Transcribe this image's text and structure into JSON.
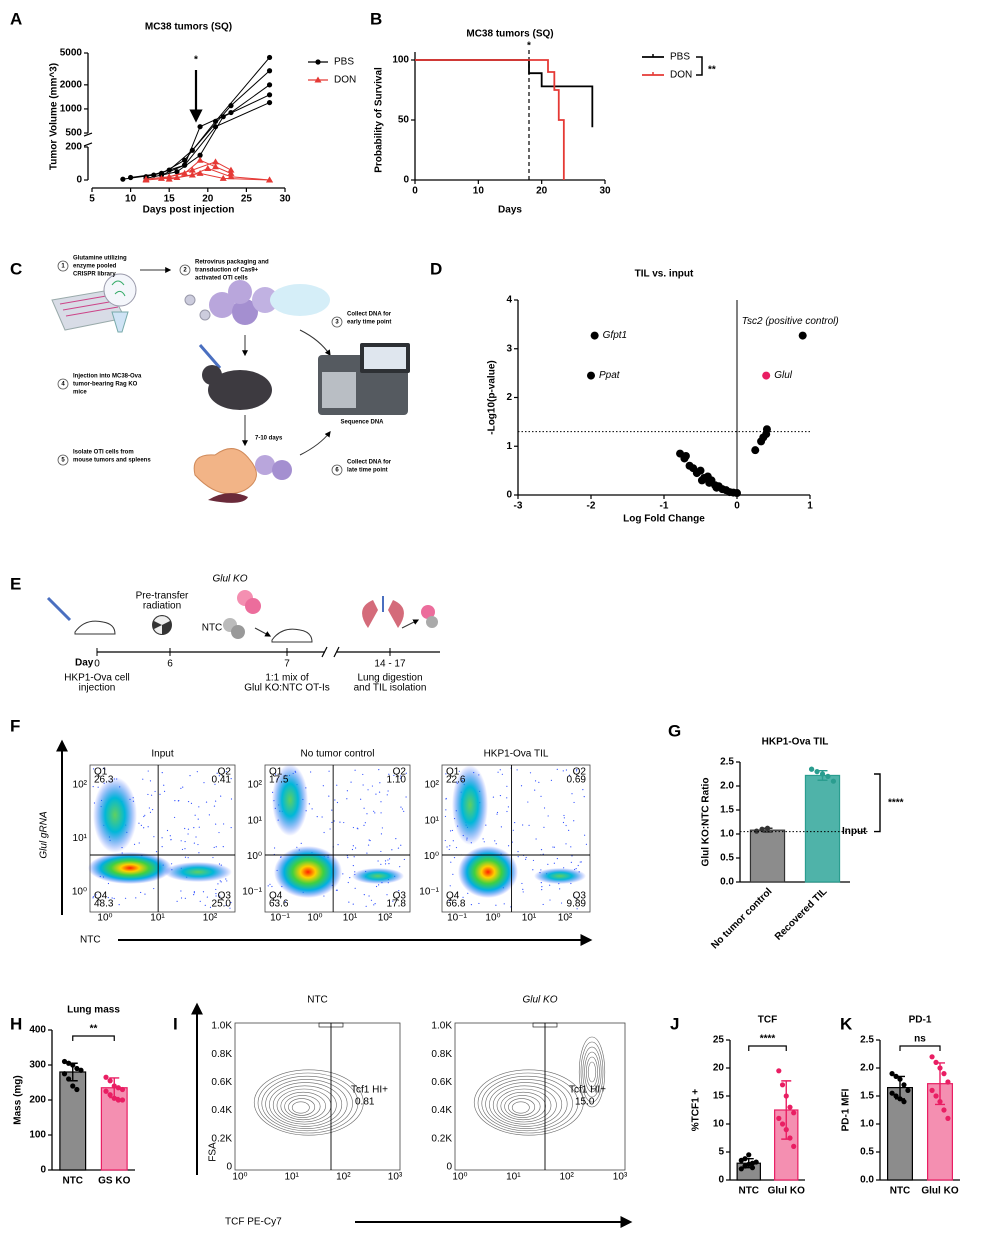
{
  "chart_data": [
    {
      "panel": "A",
      "type": "line",
      "title": "MC38 tumors (SQ)",
      "x_label": "Days post injection",
      "y_label": "Tumor Volume (mm^3)",
      "xlim": [
        5,
        30
      ],
      "xticks": [
        5,
        10,
        15,
        20,
        25,
        30
      ],
      "ylim": [
        0,
        5000
      ],
      "yticks": [
        0,
        200,
        500,
        1000,
        2000,
        5000
      ],
      "ybreak": [
        200,
        500
      ],
      "upper_scale": "log",
      "annotation": "*",
      "groups": [
        {
          "name": "PBS",
          "color": "#000000",
          "marker": "circle",
          "mice": [
            {
              "x": [
                10,
                14,
                17,
                21,
                28
              ],
              "values": [
                15,
                40,
                120,
                700,
                4400
              ]
            },
            {
              "x": [
                12,
                15,
                18,
                23,
                28
              ],
              "values": [
                20,
                60,
                180,
                1100,
                3000
              ]
            },
            {
              "x": [
                14,
                17,
                19,
                23,
                28
              ],
              "values": [
                30,
                90,
                600,
                900,
                2000
              ]
            },
            {
              "x": [
                12,
                16,
                19,
                22,
                28
              ],
              "values": [
                10,
                50,
                150,
                800,
                1500
              ]
            },
            {
              "x": [
                9,
                13,
                17,
                21,
                28
              ],
              "values": [
                5,
                30,
                90,
                600,
                1200
              ]
            }
          ]
        },
        {
          "name": "DON",
          "color": "#e53935",
          "marker": "triangle",
          "mice": [
            {
              "x": [
                12,
                15,
                18,
                21,
                23
              ],
              "values": [
                5,
                20,
                60,
                110,
                60
              ]
            },
            {
              "x": [
                14,
                17,
                19,
                21,
                23
              ],
              "values": [
                10,
                40,
                120,
                80,
                40
              ]
            },
            {
              "x": [
                15,
                18,
                20,
                23,
                28
              ],
              "values": [
                5,
                30,
                70,
                20,
                0
              ]
            },
            {
              "x": [
                12,
                16,
                19,
                22,
                28
              ],
              "values": [
                0,
                15,
                40,
                10,
                0
              ]
            }
          ]
        }
      ]
    },
    {
      "panel": "B",
      "type": "step",
      "title": "MC38 tumors (SQ)",
      "x_label": "Days",
      "y_label": "Probability of Survival",
      "xlim": [
        0,
        30
      ],
      "xticks": [
        0,
        10,
        20,
        30
      ],
      "ylim": [
        0,
        100
      ],
      "yticks": [
        0,
        50,
        100
      ],
      "vline_x": 18,
      "vline_label": "*",
      "significance": "**",
      "series": [
        {
          "name": "PBS",
          "color": "#000000",
          "x": [
            0,
            18,
            20,
            22,
            28
          ],
          "values": [
            100,
            89,
            78,
            78,
            44
          ]
        },
        {
          "name": "DON",
          "color": "#e53935",
          "x": [
            0,
            21,
            22,
            22.7,
            23.5
          ],
          "values": [
            100,
            90,
            75,
            50,
            0
          ]
        }
      ]
    },
    {
      "panel": "D",
      "type": "scatter",
      "title": "TIL vs. input",
      "x_label": "Log Fold Change",
      "y_label": "-Log10(p-value)",
      "xlim": [
        -3,
        1
      ],
      "xticks": [
        -3,
        -2,
        -1,
        0,
        1
      ],
      "ylim": [
        0,
        4
      ],
      "yticks": [
        0,
        1,
        2,
        3,
        4
      ],
      "threshold": 1.3,
      "color": "#000000",
      "x": [
        -0.78,
        -0.72,
        -0.7,
        -0.65,
        -0.6,
        -0.55,
        -0.5,
        -0.48,
        -0.45,
        -0.4,
        -0.38,
        -0.35,
        -0.3,
        -0.28,
        -0.25,
        -0.2,
        -0.15,
        -0.1,
        -0.05,
        0,
        0.25,
        0.33,
        0.36,
        0.4,
        0.41
      ],
      "values": [
        0.85,
        0.75,
        0.8,
        0.6,
        0.55,
        0.45,
        0.5,
        0.3,
        0.35,
        0.38,
        0.25,
        0.3,
        0.2,
        0.15,
        0.18,
        0.12,
        0.1,
        0.06,
        0.05,
        0.04,
        0.92,
        1.1,
        1.18,
        1.25,
        1.35
      ],
      "highlights": [
        {
          "name": "Gfpt1",
          "x": -1.95,
          "y": 3.27,
          "color": "#000000"
        },
        {
          "name": "Ppat",
          "x": -2.0,
          "y": 2.45,
          "color": "#000000"
        },
        {
          "name": "Tsc2 (positive control)",
          "x": 0.9,
          "y": 3.27,
          "color": "#000000"
        },
        {
          "name": "Glul",
          "x": 0.4,
          "y": 2.45,
          "color": "#e91e63"
        }
      ]
    },
    {
      "panel": "G",
      "type": "bar",
      "title": "HKP1-Ova TIL",
      "y_label": "Glul KO:NTC Ratio",
      "rotate_labels": true,
      "categories": [
        "No tumor control",
        "Recovered TIL"
      ],
      "values": [
        1.08,
        2.22
      ],
      "errors": [
        0.04,
        0.1
      ],
      "colors": [
        "#8c8c8c",
        "#4fb3a9"
      ],
      "point_colors": [
        "#333333",
        "#2a9d8f"
      ],
      "points": [
        [
          1.06,
          1.1,
          1.12
        ],
        [
          2.35,
          2.3,
          2.25,
          2.2,
          2.1,
          2.35
        ]
      ],
      "ylim": [
        0,
        2.5
      ],
      "yticks": [
        {
          "value": 0,
          "label": "0.0"
        },
        0.5,
        {
          "value": 1,
          "label": "1.0"
        },
        1.5,
        {
          "value": 2,
          "label": "2.0"
        },
        2.5
      ],
      "reference": 1.05,
      "reference_label": "Input",
      "significance": "****"
    },
    {
      "panel": "H",
      "type": "bar",
      "title": "Lung mass",
      "y_label": "Mass (mg)",
      "categories": [
        "NTC",
        "GS KO"
      ],
      "values": [
        280,
        235
      ],
      "errors": [
        25,
        28
      ],
      "colors": [
        "#8c8c8c",
        "#f48fb1"
      ],
      "point_colors": [
        "#000000",
        "#e91e63"
      ],
      "points": [
        [
          310,
          305,
          300,
          290,
          285,
          275,
          260,
          240,
          230
        ],
        [
          265,
          255,
          240,
          235,
          230,
          225,
          215,
          205,
          200,
          200
        ]
      ],
      "ylim": [
        0,
        400
      ],
      "yticks": [
        0,
        100,
        200,
        300,
        400
      ],
      "significance": "**"
    },
    {
      "panel": "J",
      "type": "bar",
      "title": "TCF",
      "y_label": "%TCF1 +",
      "categories": [
        "NTC",
        "Glul KO"
      ],
      "values": [
        3,
        12.5
      ],
      "errors": [
        0.8,
        5.2
      ],
      "colors": [
        "#8c8c8c",
        "#f48fb1"
      ],
      "point_colors": [
        "#000000",
        "#e91e63"
      ],
      "points": [
        [
          2.0,
          2.5,
          2.8,
          3.0,
          3.2,
          3.5,
          3.8,
          4.5,
          2.2
        ],
        [
          19.5,
          17,
          15,
          13,
          12,
          11,
          10,
          9,
          7.5,
          6
        ]
      ],
      "ylim": [
        0,
        25
      ],
      "yticks": [
        0,
        5,
        10,
        15,
        20,
        25
      ],
      "significance": "****"
    },
    {
      "panel": "K",
      "type": "bar",
      "title": "PD-1",
      "y_label": "PD-1 MFI",
      "categories": [
        "NTC",
        "Glul KO"
      ],
      "values": [
        1.65,
        1.72
      ],
      "errors": [
        0.2,
        0.37
      ],
      "colors": [
        "#8c8c8c",
        "#f48fb1"
      ],
      "point_colors": [
        "#000000",
        "#e91e63"
      ],
      "points": [
        [
          1.9,
          1.85,
          1.8,
          1.7,
          1.6,
          1.55,
          1.5,
          1.45,
          1.4
        ],
        [
          2.2,
          2.1,
          2.0,
          1.9,
          1.75,
          1.6,
          1.5,
          1.4,
          1.25,
          1.1
        ]
      ],
      "ylim": [
        0,
        2.5
      ],
      "yticks": [
        {
          "value": 0,
          "label": "0.0"
        },
        0.5,
        {
          "value": 1,
          "label": "1.0"
        },
        1.5,
        {
          "value": 2,
          "label": "2.0"
        },
        2.5
      ],
      "significance": "ns"
    }
  ],
  "schematic_c": {
    "panel": "C",
    "time_label": "7-10 days",
    "device_label": "Sequence DNA",
    "steps": [
      {
        "number": "1",
        "lines": [
          "Glutamine utilizing",
          "enzyme pooled",
          "CRISPR library"
        ]
      },
      {
        "number": "2",
        "lines": [
          "Retrovirus packaging and",
          "transduction of Cas9+",
          "activated OTI cells"
        ]
      },
      {
        "number": "3",
        "lines": [
          "Collect DNA for",
          "early time point"
        ]
      },
      {
        "number": "4",
        "lines": [
          "Injection into MC38-Ova",
          "tumor-bearing Rag KO",
          "mice"
        ]
      },
      {
        "number": "5",
        "lines": [
          "Isolate OTI cells from",
          "mouse tumors and spleens"
        ]
      },
      {
        "number": "6",
        "lines": [
          "Collect DNA for",
          "late time point"
        ]
      }
    ]
  },
  "schematic_e": {
    "panel": "E",
    "day_label": "Day",
    "radiation": [
      "Pre-transfer",
      "radiation"
    ],
    "ko_label": "Glul KO",
    "ntc_label": "NTC",
    "days": [
      {
        "label": "0",
        "lines": [
          "HKP1-Ova cell",
          "injection"
        ]
      },
      {
        "label": "6"
      },
      {
        "label": "7",
        "lines": [
          "1:1 mix of",
          "Glul KO:NTC OT-Is"
        ]
      },
      {
        "label": "14 - 17",
        "lines": [
          "Lung digestion",
          "and TIL isolation"
        ]
      }
    ]
  },
  "flow_f": {
    "panel": "F",
    "y_label": "Glul gRNA",
    "x_label": "NTC",
    "plots": [
      {
        "title": "Input",
        "xticks": [
          "10⁰",
          "10¹",
          "10²"
        ],
        "yticks": [
          "10²",
          "10¹",
          "10⁰"
        ],
        "quadrants": [
          {
            "name": "Q1",
            "value": "26.3"
          },
          {
            "name": "Q2",
            "value": "0.41"
          },
          {
            "name": "Q4",
            "value": "48.3"
          },
          {
            "name": "Q3",
            "value": "25.0"
          }
        ]
      },
      {
        "title": "No tumor control",
        "xticks": [
          "10⁻¹",
          "10⁰",
          "10¹",
          "10²"
        ],
        "yticks": [
          "10²",
          "10¹",
          "10⁰",
          "10⁻¹"
        ],
        "quadrants": [
          {
            "name": "Q1",
            "value": "17.5"
          },
          {
            "name": "Q2",
            "value": "1.10"
          },
          {
            "name": "Q4",
            "value": "63.6"
          },
          {
            "name": "Q3",
            "value": "17.8"
          }
        ]
      },
      {
        "title": "HKP1-Ova TIL",
        "xticks": [
          "10⁻¹",
          "10⁰",
          "10¹",
          "10²"
        ],
        "yticks": [
          "10²",
          "10¹",
          "10⁰",
          "10⁻¹"
        ],
        "quadrants": [
          {
            "name": "Q1",
            "value": "22.6"
          },
          {
            "name": "Q2",
            "value": "0.69"
          },
          {
            "name": "Q4",
            "value": "66.8"
          },
          {
            "name": "Q3",
            "value": "9.89"
          }
        ]
      }
    ]
  },
  "flow_i": {
    "panel": "I",
    "y_label": "FSA",
    "x_label": "TCF PE-Cy7",
    "yticks": [
      "1.0K",
      "0.8K",
      "0.6K",
      "0.4K",
      "0.2K",
      "0"
    ],
    "xticks": [
      "10⁰",
      "10¹",
      "10²",
      "10³"
    ],
    "gate_label": "Tcf1 HI+",
    "plots": [
      {
        "title": "NTC",
        "gate_value": "0.81"
      },
      {
        "title": "Glul KO",
        "gate_value": "15.0"
      }
    ]
  }
}
